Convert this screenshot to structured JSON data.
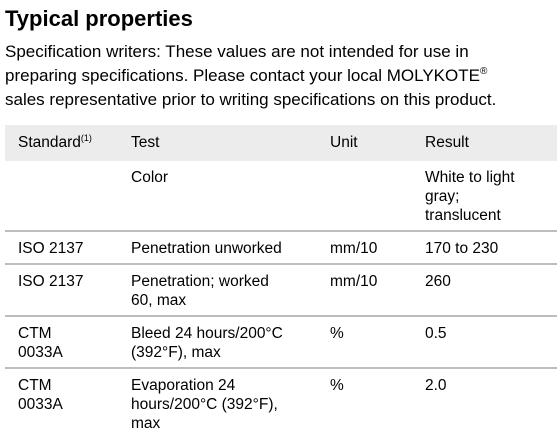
{
  "header": {
    "title": "Typical properties",
    "intro_line1": "Specification writers: These values are not intended for use in",
    "intro_line2": "preparing specifications. Please contact your local MOLYKOTE",
    "intro_line2_sup": "®",
    "intro_line3": "sales representative prior to writing specifications on this product."
  },
  "table": {
    "columns": {
      "standard": "Standard",
      "standard_sup": "(1)",
      "test": "Test",
      "unit": "Unit",
      "result": "Result"
    },
    "rows": [
      {
        "standard": [
          ""
        ],
        "test": [
          "Color"
        ],
        "unit": [
          ""
        ],
        "result": [
          "White to light",
          "gray;",
          "translucent"
        ]
      },
      {
        "standard": [
          "ISO 2137"
        ],
        "test": [
          "Penetration unworked"
        ],
        "unit": [
          "mm/10"
        ],
        "result": [
          "170 to 230"
        ]
      },
      {
        "standard": [
          "ISO 2137"
        ],
        "test": [
          "Penetration; worked",
          "60, max"
        ],
        "unit": [
          "mm/10"
        ],
        "result": [
          "260"
        ]
      },
      {
        "standard": [
          "CTM",
          "0033A"
        ],
        "test": [
          "Bleed 24 hours/200°C",
          "(392°F), max"
        ],
        "unit": [
          "%"
        ],
        "result": [
          "0.5"
        ]
      },
      {
        "standard": [
          "CTM",
          "0033A"
        ],
        "test": [
          "Evaporation 24",
          "hours/200°C (392°F),",
          "max"
        ],
        "unit": [
          "%"
        ],
        "result": [
          "2.0"
        ]
      }
    ]
  }
}
